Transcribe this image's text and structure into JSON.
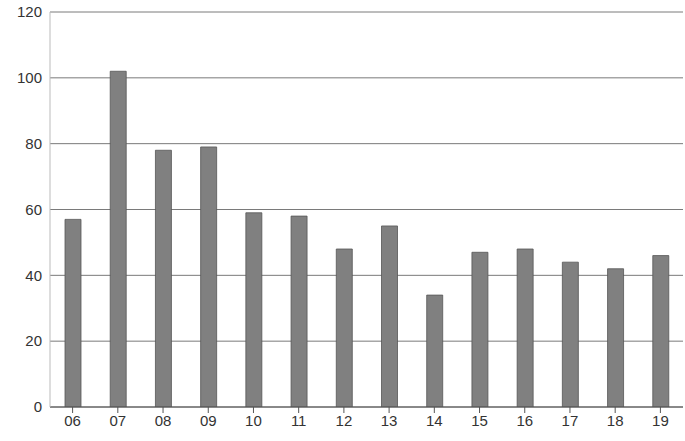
{
  "chart_data": {
    "type": "bar",
    "categories": [
      "06",
      "07",
      "08",
      "09",
      "10",
      "11",
      "12",
      "13",
      "14",
      "15",
      "16",
      "17",
      "18",
      "19"
    ],
    "values": [
      57,
      102,
      78,
      79,
      59,
      58,
      48,
      55,
      34,
      47,
      48,
      44,
      42,
      46
    ],
    "color": "#808080",
    "ylim": [
      0,
      120
    ],
    "yticks": [
      0,
      20,
      40,
      60,
      80,
      100,
      120
    ],
    "grid": true
  }
}
